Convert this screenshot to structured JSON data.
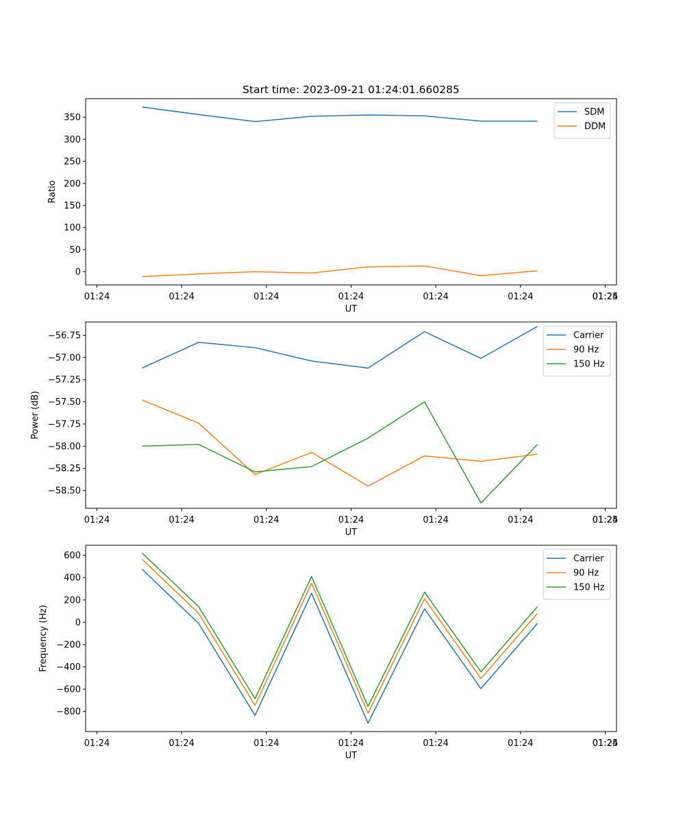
{
  "figure_title": "Start time: 2023-09-21 01:24:01.660285",
  "chart_data": [
    {
      "type": "line",
      "name": "ratio-panel",
      "xlabel": "UT",
      "ylabel": "Ratio",
      "x_tick_labels": [
        "01:24",
        "01:24",
        "01:24",
        "01:24",
        "01:24",
        "01:24",
        "01:24"
      ],
      "x_tick_last": "01:25",
      "xlim": [
        0,
        9.4
      ],
      "x": [
        1,
        2,
        3,
        4,
        5,
        6,
        7,
        8
      ],
      "ylim": [
        -30,
        392
      ],
      "yticks": [
        0,
        50,
        100,
        150,
        200,
        250,
        300,
        350
      ],
      "ytick_labels": [
        "0",
        "50",
        "100",
        "150",
        "200",
        "250",
        "300",
        "350"
      ],
      "legend_position": "top-right",
      "series": [
        {
          "name": "SDM",
          "color": "#1f77b4",
          "values": [
            373,
            356,
            340,
            352,
            355,
            353,
            341,
            341
          ]
        },
        {
          "name": "DDM",
          "color": "#ff7f0e",
          "values": [
            -11,
            -5,
            0,
            -3,
            11,
            13,
            -9,
            2
          ]
        }
      ]
    },
    {
      "type": "line",
      "name": "power-panel",
      "xlabel": "UT",
      "ylabel": "Power (dB)",
      "x_tick_labels": [
        "01:24",
        "01:24",
        "01:24",
        "01:24",
        "01:24",
        "01:24",
        "01:24"
      ],
      "x_tick_last": "01:25",
      "xlim": [
        0,
        9.4
      ],
      "x": [
        1,
        2,
        3,
        4,
        5,
        6,
        7,
        8
      ],
      "ylim": [
        -58.7,
        -56.6
      ],
      "yticks": [
        -58.5,
        -58.25,
        -58.0,
        -57.75,
        -57.5,
        -57.25,
        -57.0,
        -56.75
      ],
      "ytick_labels": [
        "−58.50",
        "−58.25",
        "−58.00",
        "−57.75",
        "−57.50",
        "−57.25",
        "−57.00",
        "−56.75"
      ],
      "legend_position": "top-right",
      "series": [
        {
          "name": "Carrier",
          "color": "#1f77b4",
          "values": [
            -57.12,
            -56.83,
            -56.89,
            -57.04,
            -57.12,
            -56.71,
            -57.01,
            -56.65
          ]
        },
        {
          "name": "90 Hz",
          "color": "#ff7f0e",
          "values": [
            -57.48,
            -57.74,
            -58.32,
            -58.07,
            -58.45,
            -58.11,
            -58.17,
            -58.09
          ]
        },
        {
          "name": "150 Hz",
          "color": "#2ca02c",
          "values": [
            -58.0,
            -57.98,
            -58.29,
            -58.23,
            -57.91,
            -57.5,
            -58.64,
            -57.98
          ]
        }
      ]
    },
    {
      "type": "line",
      "name": "frequency-panel",
      "xlabel": "UT",
      "ylabel": "Frequency (Hz)",
      "x_tick_labels": [
        "01:24",
        "01:24",
        "01:24",
        "01:24",
        "01:24",
        "01:24",
        "01:24"
      ],
      "x_tick_last": "01:25",
      "xlim": [
        0,
        9.4
      ],
      "x": [
        1,
        2,
        3,
        4,
        5,
        6,
        7,
        8
      ],
      "ylim": [
        -980,
        690
      ],
      "yticks": [
        -800,
        -600,
        -400,
        -200,
        0,
        200,
        400,
        600
      ],
      "ytick_labels": [
        "−800",
        "−600",
        "−400",
        "−200",
        "0",
        "200",
        "400",
        "600"
      ],
      "legend_position": "top-right",
      "series": [
        {
          "name": "Carrier",
          "color": "#1f77b4",
          "values": [
            475,
            -10,
            -835,
            260,
            -905,
            120,
            -595,
            -10
          ]
        },
        {
          "name": "90 Hz",
          "color": "#ff7f0e",
          "values": [
            565,
            80,
            -745,
            350,
            -815,
            210,
            -505,
            80
          ]
        },
        {
          "name": "150 Hz",
          "color": "#2ca02c",
          "values": [
            620,
            140,
            -685,
            410,
            -755,
            270,
            -445,
            140
          ]
        }
      ]
    }
  ]
}
